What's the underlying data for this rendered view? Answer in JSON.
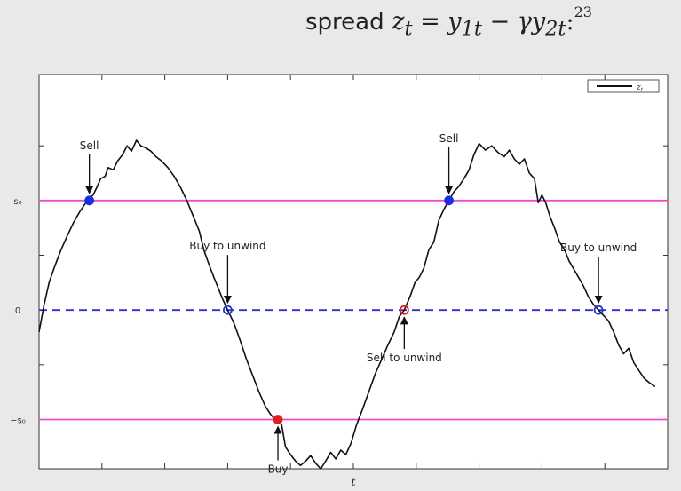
{
  "title": {
    "prefix": "spread",
    "z": "z",
    "t_sub": "t",
    "eq": " = ",
    "y": "y",
    "sub1": "1t",
    "minus": " − ",
    "gamma": "γ",
    "sub2": "2t",
    "colon": ":",
    "footnote": "23"
  },
  "chart_data": {
    "type": "line",
    "xlabel": "t",
    "ylabel": "",
    "xlim": [
      0,
      1
    ],
    "ylim": [
      -1.45,
      2.15
    ],
    "grid": false,
    "legend": {
      "entries": [
        "z_t"
      ],
      "placement": "top-right"
    },
    "y_ticks": [
      {
        "value": 1,
        "label": "s₀"
      },
      {
        "value": 0,
        "label": "0"
      },
      {
        "value": -1,
        "label": "−s₀"
      }
    ],
    "x_tick_count": 10,
    "reference_lines": [
      {
        "y": 1,
        "color": "#e84fd0",
        "style": "solid"
      },
      {
        "y": 0,
        "color": "#2f2fd8",
        "style": "dashed"
      },
      {
        "y": -1,
        "color": "#e84fd0",
        "style": "solid"
      }
    ],
    "series": [
      {
        "color": "#111111",
        "points": [
          [
            0.0,
            -0.2
          ],
          [
            0.008,
            0.05
          ],
          [
            0.016,
            0.25
          ],
          [
            0.025,
            0.4
          ],
          [
            0.035,
            0.55
          ],
          [
            0.045,
            0.68
          ],
          [
            0.055,
            0.8
          ],
          [
            0.065,
            0.9
          ],
          [
            0.072,
            0.96
          ],
          [
            0.08,
            1.02
          ],
          [
            0.086,
            1.05
          ],
          [
            0.092,
            1.12
          ],
          [
            0.098,
            1.2
          ],
          [
            0.105,
            1.22
          ],
          [
            0.11,
            1.3
          ],
          [
            0.118,
            1.28
          ],
          [
            0.125,
            1.36
          ],
          [
            0.133,
            1.42
          ],
          [
            0.14,
            1.5
          ],
          [
            0.147,
            1.45
          ],
          [
            0.155,
            1.55
          ],
          [
            0.162,
            1.5
          ],
          [
            0.17,
            1.48
          ],
          [
            0.178,
            1.45
          ],
          [
            0.186,
            1.4
          ],
          [
            0.195,
            1.36
          ],
          [
            0.205,
            1.3
          ],
          [
            0.215,
            1.22
          ],
          [
            0.225,
            1.12
          ],
          [
            0.235,
            1.0
          ],
          [
            0.245,
            0.86
          ],
          [
            0.255,
            0.72
          ],
          [
            0.262,
            0.55
          ],
          [
            0.27,
            0.42
          ],
          [
            0.278,
            0.3
          ],
          [
            0.285,
            0.2
          ],
          [
            0.292,
            0.1
          ],
          [
            0.3,
            0.0
          ],
          [
            0.31,
            -0.12
          ],
          [
            0.32,
            -0.28
          ],
          [
            0.33,
            -0.45
          ],
          [
            0.34,
            -0.6
          ],
          [
            0.35,
            -0.75
          ],
          [
            0.36,
            -0.88
          ],
          [
            0.368,
            -0.95
          ],
          [
            0.375,
            -1.0
          ],
          [
            0.38,
            -1.02
          ],
          [
            0.386,
            -1.05
          ],
          [
            0.392,
            -1.25
          ],
          [
            0.4,
            -1.32
          ],
          [
            0.408,
            -1.38
          ],
          [
            0.416,
            -1.42
          ],
          [
            0.424,
            -1.38
          ],
          [
            0.432,
            -1.33
          ],
          [
            0.44,
            -1.4
          ],
          [
            0.448,
            -1.45
          ],
          [
            0.456,
            -1.38
          ],
          [
            0.464,
            -1.3
          ],
          [
            0.472,
            -1.36
          ],
          [
            0.48,
            -1.28
          ],
          [
            0.488,
            -1.32
          ],
          [
            0.496,
            -1.22
          ],
          [
            0.505,
            -1.05
          ],
          [
            0.515,
            -0.9
          ],
          [
            0.525,
            -0.74
          ],
          [
            0.535,
            -0.58
          ],
          [
            0.545,
            -0.45
          ],
          [
            0.555,
            -0.32
          ],
          [
            0.565,
            -0.2
          ],
          [
            0.573,
            -0.06
          ],
          [
            0.581,
            0.0
          ],
          [
            0.59,
            0.12
          ],
          [
            0.598,
            0.25
          ],
          [
            0.605,
            0.3
          ],
          [
            0.612,
            0.38
          ],
          [
            0.62,
            0.55
          ],
          [
            0.628,
            0.62
          ],
          [
            0.636,
            0.82
          ],
          [
            0.644,
            0.92
          ],
          [
            0.652,
            1.0
          ],
          [
            0.66,
            1.08
          ],
          [
            0.668,
            1.13
          ],
          [
            0.676,
            1.2
          ],
          [
            0.684,
            1.28
          ],
          [
            0.692,
            1.42
          ],
          [
            0.7,
            1.52
          ],
          [
            0.71,
            1.46
          ],
          [
            0.72,
            1.5
          ],
          [
            0.73,
            1.44
          ],
          [
            0.74,
            1.4
          ],
          [
            0.748,
            1.46
          ],
          [
            0.756,
            1.38
          ],
          [
            0.764,
            1.33
          ],
          [
            0.772,
            1.38
          ],
          [
            0.78,
            1.25
          ],
          [
            0.788,
            1.2
          ],
          [
            0.794,
            0.98
          ],
          [
            0.8,
            1.05
          ],
          [
            0.806,
            0.98
          ],
          [
            0.813,
            0.85
          ],
          [
            0.82,
            0.75
          ],
          [
            0.828,
            0.62
          ],
          [
            0.836,
            0.55
          ],
          [
            0.843,
            0.45
          ],
          [
            0.85,
            0.38
          ],
          [
            0.858,
            0.3
          ],
          [
            0.866,
            0.22
          ],
          [
            0.874,
            0.12
          ],
          [
            0.882,
            0.05
          ],
          [
            0.89,
            0.0
          ],
          [
            0.898,
            -0.05
          ],
          [
            0.906,
            -0.1
          ],
          [
            0.914,
            -0.2
          ],
          [
            0.922,
            -0.32
          ],
          [
            0.93,
            -0.4
          ],
          [
            0.938,
            -0.35
          ],
          [
            0.946,
            -0.48
          ],
          [
            0.954,
            -0.55
          ],
          [
            0.962,
            -0.62
          ],
          [
            0.97,
            -0.66
          ],
          [
            0.98,
            -0.7
          ]
        ]
      }
    ],
    "markers": [
      {
        "x": 0.08,
        "y": 1,
        "color": "#1a2ee0",
        "filled": true
      },
      {
        "x": 0.3,
        "y": 0,
        "color": "#2238c8",
        "filled": false
      },
      {
        "x": 0.38,
        "y": -1,
        "color": "#e02020",
        "filled": true
      },
      {
        "x": 0.581,
        "y": 0,
        "color": "#e02020",
        "filled": false
      },
      {
        "x": 0.652,
        "y": 1,
        "color": "#1a2ee0",
        "filled": true
      },
      {
        "x": 0.89,
        "y": 0,
        "color": "#2238c8",
        "filled": false
      }
    ],
    "annotations": [
      {
        "text": "Sell",
        "x": 0.08,
        "y": 1
      },
      {
        "text": "Buy to unwind",
        "x": 0.3,
        "y": 0
      },
      {
        "text": "Buy",
        "x": 0.38,
        "y": -1
      },
      {
        "text": "Sell to unwind",
        "x": 0.581,
        "y": 0
      },
      {
        "text": "Sell",
        "x": 0.652,
        "y": 1
      },
      {
        "text": "Buy to unwind",
        "x": 0.89,
        "y": 0
      }
    ]
  }
}
